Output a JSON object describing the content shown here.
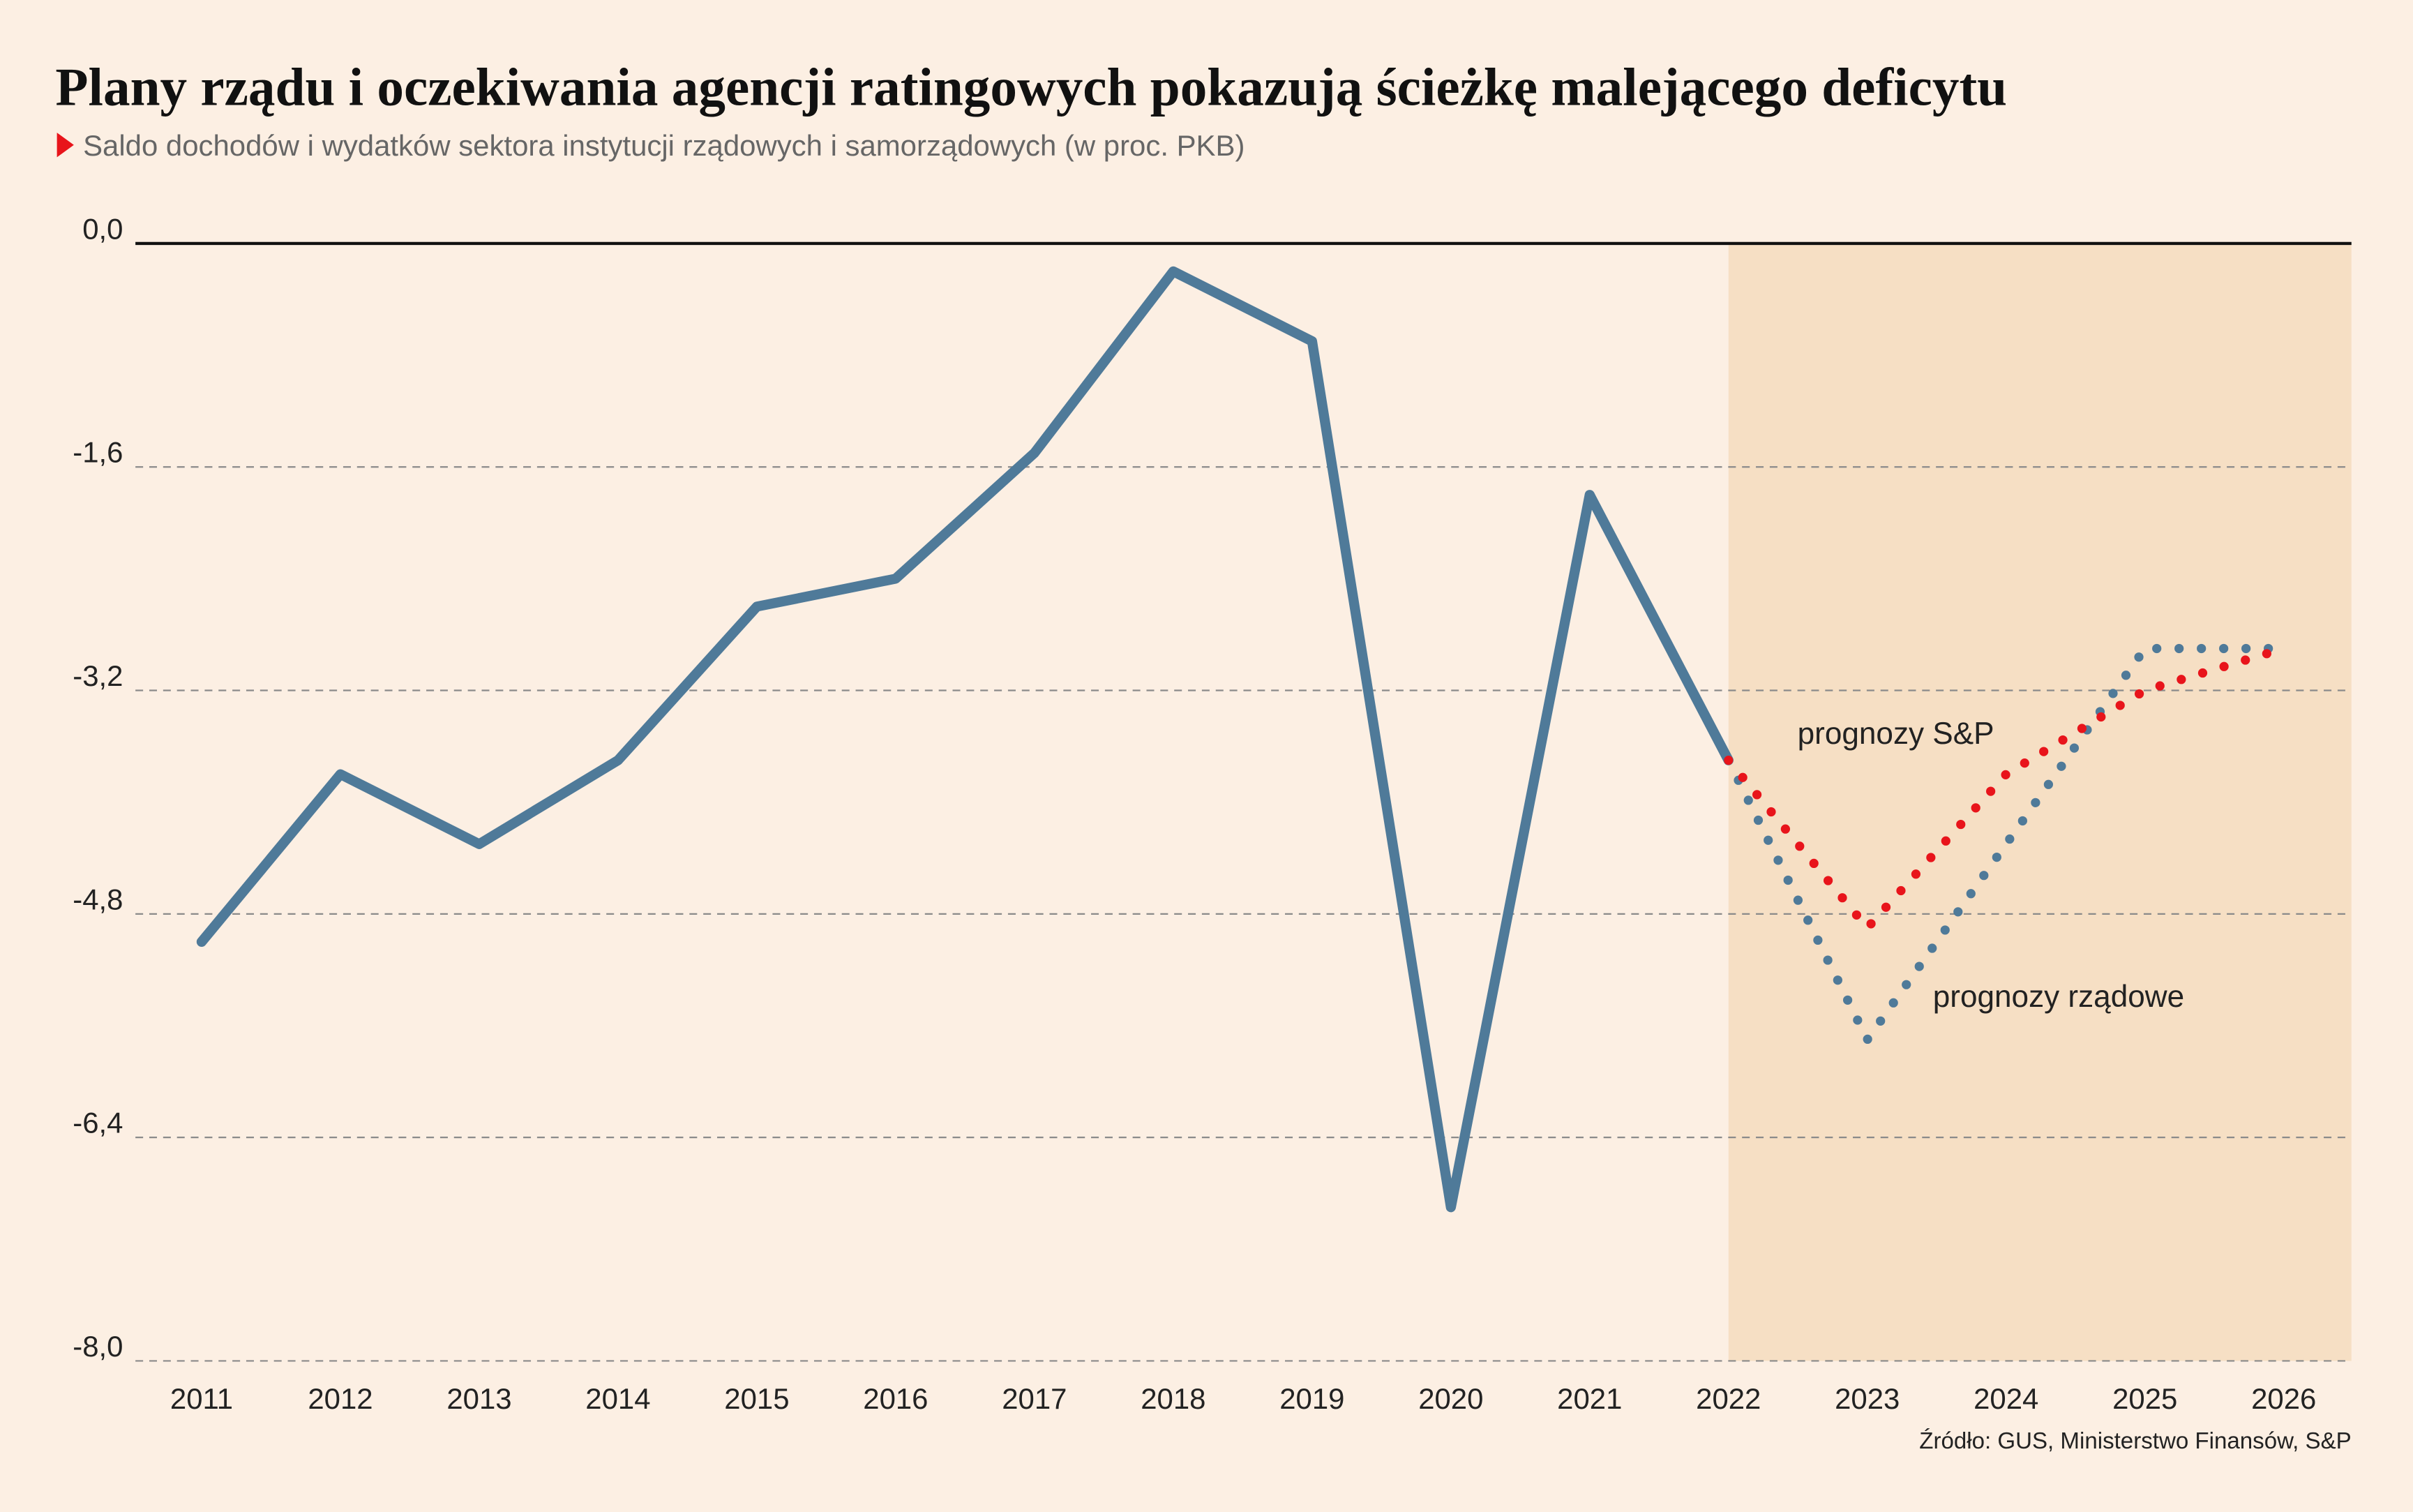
{
  "chart_data": {
    "type": "line",
    "title": "Plany rządu i oczekiwania agencji ratingowych pokazują ścieżkę malejącego deficytu",
    "subtitle": "Saldo dochodów i wydatków sektora instytucji rządowych i samorządowych (w proc. PKB)",
    "source": "Źródło: GUS, Ministerstwo Finansów, S&P",
    "categories": [
      "2011",
      "2012",
      "2013",
      "2014",
      "2015",
      "2016",
      "2017",
      "2018",
      "2019",
      "2020",
      "2021",
      "2022",
      "2023",
      "2024",
      "2025",
      "2026"
    ],
    "ylim": [
      -8,
      0
    ],
    "yticks": [
      {
        "value": 0,
        "label": "0,0"
      },
      {
        "value": -1.6,
        "label": "-1,6"
      },
      {
        "value": -3.2,
        "label": "-3,2"
      },
      {
        "value": -4.8,
        "label": "-4,8"
      },
      {
        "value": -6.4,
        "label": "-6,4"
      },
      {
        "value": -8,
        "label": "-8,0"
      }
    ],
    "grid": true,
    "series": [
      {
        "color": "#4f7a99",
        "style": "solid",
        "values": [
          -5.0,
          -3.8,
          -4.3,
          -3.7,
          -2.6,
          -2.4,
          -1.5,
          -0.2,
          -0.7,
          -6.9,
          -1.8,
          -3.7,
          null,
          null,
          null,
          null
        ]
      },
      {
        "name": "prognozy rządowe",
        "color": "#4f7a99",
        "style": "dotted",
        "values": [
          null,
          null,
          null,
          null,
          null,
          null,
          null,
          null,
          null,
          null,
          null,
          -3.7,
          -5.7,
          -4.3,
          -2.9,
          -2.9
        ]
      },
      {
        "name": "prognozy S&P",
        "color": "#e8141b",
        "style": "dotted",
        "values": [
          null,
          null,
          null,
          null,
          null,
          null,
          null,
          null,
          null,
          null,
          null,
          -3.7,
          -4.9,
          -3.8,
          -3.2,
          -2.9
        ]
      }
    ]
  }
}
